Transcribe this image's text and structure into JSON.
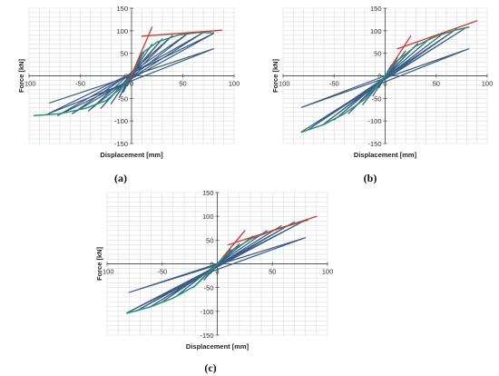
{
  "chart_data": [
    {
      "type": "line",
      "panel_label": "(a)",
      "xlabel": "Displacement [mm]",
      "ylabel": "Force [kN]",
      "xlim": [
        -100,
        100
      ],
      "ylim": [
        -150,
        150
      ],
      "xticks": [
        -100,
        -50,
        0,
        50,
        100
      ],
      "yticks": [
        150,
        100,
        50,
        0,
        -50,
        -100,
        -150
      ],
      "grid": true,
      "series": [
        {
          "role": "hysteresis",
          "color": "#3a5e88",
          "points": [
            [
              0,
              0
            ],
            [
              2,
              10
            ],
            [
              -2,
              -12
            ],
            [
              0,
              0
            ],
            [
              4,
              22
            ],
            [
              -4,
              -22
            ],
            [
              2,
              4
            ],
            [
              8,
              38
            ],
            [
              -8,
              -36
            ],
            [
              -2,
              -5
            ],
            [
              12,
              52
            ],
            [
              -12,
              -48
            ],
            [
              -4,
              -10
            ],
            [
              20,
              70
            ],
            [
              -20,
              -62
            ],
            [
              -6,
              -14
            ],
            [
              30,
              82
            ],
            [
              -30,
              -72
            ],
            [
              -8,
              -18
            ],
            [
              40,
              90
            ],
            [
              -42,
              -78
            ],
            [
              -10,
              -20
            ],
            [
              55,
              94
            ],
            [
              -58,
              -84
            ],
            [
              -12,
              -22
            ],
            [
              70,
              96
            ],
            [
              -72,
              -88
            ],
            [
              -14,
              -24
            ],
            [
              80,
              94
            ],
            [
              -82,
              -85
            ],
            [
              -10,
              -20
            ],
            [
              80,
              60
            ],
            [
              -80,
              -60
            ],
            [
              0,
              0
            ]
          ]
        },
        {
          "role": "envelope",
          "color": "#1d9a6c",
          "points": [
            [
              -95,
              -88
            ],
            [
              -70,
              -84
            ],
            [
              -45,
              -72
            ],
            [
              -25,
              -55
            ],
            [
              -8,
              -22
            ],
            [
              0,
              0
            ],
            [
              10,
              50
            ],
            [
              25,
              75
            ],
            [
              45,
              90
            ],
            [
              65,
              96
            ],
            [
              80,
              95
            ]
          ]
        },
        {
          "role": "elastic-tangent",
          "color": "#e03030",
          "points": [
            [
              -2,
              -8
            ],
            [
              20,
              108
            ]
          ]
        },
        {
          "role": "post-yield-tangent",
          "color": "#e03030",
          "points": [
            [
              10,
              88
            ],
            [
              88,
              101
            ]
          ]
        }
      ]
    },
    {
      "type": "line",
      "panel_label": "(b)",
      "xlabel": "Displacement [mm]",
      "ylabel": "Force [kN]",
      "xlim": [
        -100,
        100
      ],
      "ylim": [
        -150,
        150
      ],
      "xticks": [
        -100,
        -50,
        0,
        50,
        100
      ],
      "yticks": [
        150,
        100,
        50,
        0,
        -50,
        -100,
        -150
      ],
      "grid": true,
      "series": [
        {
          "role": "hysteresis",
          "color": "#3a5e88",
          "points": [
            [
              0,
              0
            ],
            [
              3,
              12
            ],
            [
              -3,
              -14
            ],
            [
              0,
              0
            ],
            [
              6,
              24
            ],
            [
              -6,
              -26
            ],
            [
              2,
              6
            ],
            [
              12,
              40
            ],
            [
              -12,
              -44
            ],
            [
              -2,
              -8
            ],
            [
              20,
              55
            ],
            [
              -22,
              -64
            ],
            [
              -5,
              -14
            ],
            [
              32,
              72
            ],
            [
              -36,
              -84
            ],
            [
              -8,
              -18
            ],
            [
              45,
              85
            ],
            [
              -50,
              -98
            ],
            [
              -10,
              -22
            ],
            [
              58,
              96
            ],
            [
              -62,
              -110
            ],
            [
              -12,
              -26
            ],
            [
              70,
              104
            ],
            [
              -76,
              -120
            ],
            [
              -14,
              -28
            ],
            [
              80,
              108
            ],
            [
              -82,
              -124
            ],
            [
              -10,
              -22
            ],
            [
              82,
              60
            ],
            [
              -82,
              -70
            ],
            [
              0,
              0
            ]
          ]
        },
        {
          "role": "envelope",
          "color": "#1d9a6c",
          "points": [
            [
              -82,
              -125
            ],
            [
              -60,
              -108
            ],
            [
              -40,
              -84
            ],
            [
              -20,
              -52
            ],
            [
              -5,
              -14
            ],
            [
              0,
              0
            ],
            [
              10,
              30
            ],
            [
              30,
              66
            ],
            [
              50,
              88
            ],
            [
              70,
              102
            ],
            [
              82,
              108
            ]
          ]
        },
        {
          "role": "elastic-tangent",
          "color": "#e03030",
          "points": [
            [
              5,
              18
            ],
            [
              25,
              88
            ]
          ]
        },
        {
          "role": "post-yield-tangent",
          "color": "#e03030",
          "points": [
            [
              12,
              60
            ],
            [
              90,
              122
            ]
          ]
        }
      ]
    },
    {
      "type": "line",
      "panel_label": "(c)",
      "xlabel": "Displacement [mm]",
      "ylabel": "Force [kN]",
      "xlim": [
        -100,
        100
      ],
      "ylim": [
        -150,
        150
      ],
      "xticks": [
        -100,
        -50,
        0,
        50,
        100
      ],
      "yticks": [
        150,
        100,
        50,
        0,
        -50,
        -100,
        -150
      ],
      "grid": true,
      "series": [
        {
          "role": "hysteresis",
          "color": "#3a5e88",
          "points": [
            [
              0,
              0
            ],
            [
              3,
              8
            ],
            [
              -3,
              -10
            ],
            [
              0,
              0
            ],
            [
              6,
              16
            ],
            [
              -6,
              -20
            ],
            [
              2,
              4
            ],
            [
              12,
              30
            ],
            [
              -12,
              -34
            ],
            [
              -2,
              -6
            ],
            [
              20,
              42
            ],
            [
              -22,
              -50
            ],
            [
              -5,
              -10
            ],
            [
              32,
              58
            ],
            [
              -36,
              -66
            ],
            [
              -8,
              -14
            ],
            [
              45,
              70
            ],
            [
              -50,
              -80
            ],
            [
              -10,
              -18
            ],
            [
              58,
              80
            ],
            [
              -62,
              -92
            ],
            [
              -12,
              -22
            ],
            [
              70,
              88
            ],
            [
              -74,
              -100
            ],
            [
              -14,
              -24
            ],
            [
              80,
              92
            ],
            [
              -82,
              -103
            ],
            [
              -10,
              -20
            ],
            [
              80,
              55
            ],
            [
              -80,
              -60
            ],
            [
              0,
              0
            ]
          ]
        },
        {
          "role": "envelope",
          "color": "#1d9a6c",
          "points": [
            [
              -82,
              -104
            ],
            [
              -60,
              -90
            ],
            [
              -40,
              -72
            ],
            [
              -20,
              -46
            ],
            [
              -5,
              -12
            ],
            [
              0,
              0
            ],
            [
              10,
              24
            ],
            [
              30,
              52
            ],
            [
              50,
              70
            ],
            [
              70,
              84
            ],
            [
              82,
              92
            ]
          ]
        },
        {
          "role": "elastic-tangent",
          "color": "#e03030",
          "points": [
            [
              5,
              14
            ],
            [
              25,
              70
            ]
          ]
        },
        {
          "role": "post-yield-tangent",
          "color": "#e03030",
          "points": [
            [
              10,
              40
            ],
            [
              90,
              100
            ]
          ]
        }
      ]
    }
  ]
}
